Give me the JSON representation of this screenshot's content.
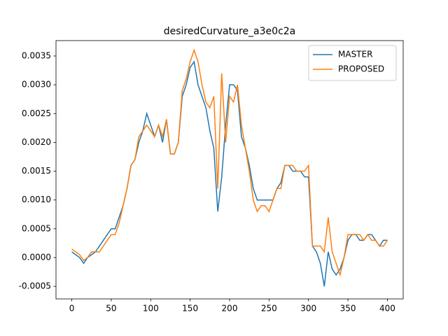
{
  "chart_data": {
    "type": "line",
    "title": "desiredCurvature_a3e0c2a",
    "x": [
      0,
      5,
      10,
      15,
      20,
      25,
      30,
      35,
      40,
      45,
      50,
      55,
      60,
      65,
      70,
      75,
      80,
      85,
      90,
      95,
      100,
      105,
      110,
      115,
      120,
      125,
      130,
      135,
      140,
      145,
      150,
      155,
      160,
      165,
      170,
      175,
      180,
      185,
      190,
      195,
      200,
      205,
      210,
      215,
      220,
      225,
      230,
      235,
      240,
      245,
      250,
      255,
      260,
      265,
      270,
      275,
      280,
      285,
      290,
      295,
      300,
      305,
      310,
      315,
      320,
      325,
      330,
      335,
      340,
      345,
      350,
      355,
      360,
      365,
      370,
      375,
      380,
      385,
      390,
      395,
      400
    ],
    "series": [
      {
        "name": "MASTER",
        "color": "#1f77b4",
        "values": [
          0.0001,
          5e-05,
          0.0,
          -0.0001,
          0.0,
          5e-05,
          0.0001,
          0.0002,
          0.0003,
          0.0004,
          0.0005,
          0.0005,
          0.0007,
          0.0009,
          0.0012,
          0.0016,
          0.0017,
          0.002,
          0.0022,
          0.0025,
          0.0023,
          0.0021,
          0.0023,
          0.002,
          0.0024,
          0.0018,
          0.0018,
          0.002,
          0.0028,
          0.003,
          0.0033,
          0.0034,
          0.003,
          0.0028,
          0.0026,
          0.0022,
          0.0019,
          0.0008,
          0.0014,
          0.0023,
          0.003,
          0.003,
          0.0029,
          0.0021,
          0.0019,
          0.0016,
          0.0012,
          0.001,
          0.001,
          0.001,
          0.001,
          0.001,
          0.0012,
          0.0013,
          0.0016,
          0.0016,
          0.0015,
          0.0015,
          0.0015,
          0.0014,
          0.0014,
          0.0002,
          0.0001,
          -0.0001,
          -0.0005,
          0.0001,
          -0.0002,
          -0.0003,
          -0.0002,
          0.0,
          0.0003,
          0.0004,
          0.0004,
          0.0003,
          0.0003,
          0.0004,
          0.0004,
          0.0003,
          0.0002,
          0.0003,
          0.0003
        ]
      },
      {
        "name": "PROPOSED",
        "color": "#ff7f0e",
        "values": [
          0.00015,
          0.0001,
          5e-05,
          -5e-05,
          0.0,
          0.0001,
          0.0001,
          0.0001,
          0.0002,
          0.0003,
          0.0004,
          0.0004,
          0.0006,
          0.0009,
          0.0012,
          0.0016,
          0.0017,
          0.0021,
          0.0022,
          0.0023,
          0.0022,
          0.0021,
          0.0023,
          0.0021,
          0.0024,
          0.0018,
          0.0018,
          0.002,
          0.0029,
          0.0031,
          0.0034,
          0.0036,
          0.0034,
          0.003,
          0.0027,
          0.0026,
          0.0028,
          0.0012,
          0.0032,
          0.002,
          0.0028,
          0.0027,
          0.003,
          0.0023,
          0.0019,
          0.0015,
          0.001,
          0.0008,
          0.0009,
          0.0009,
          0.0008,
          0.001,
          0.0012,
          0.0012,
          0.0016,
          0.0016,
          0.0016,
          0.0015,
          0.0015,
          0.0015,
          0.0016,
          0.0002,
          0.0002,
          0.0002,
          0.0001,
          0.0007,
          0.0001,
          -0.0001,
          -0.0003,
          0.0,
          0.0004,
          0.0004,
          0.0004,
          0.0004,
          0.0003,
          0.0004,
          0.0003,
          0.0003,
          0.0002,
          0.0002,
          0.0003
        ]
      }
    ],
    "xlim": [
      -20,
      420
    ],
    "xticks": [
      0,
      50,
      100,
      150,
      200,
      250,
      300,
      350,
      400
    ],
    "ylim": [
      -0.000717,
      0.003767
    ],
    "yticks": [
      {
        "value": -0.0005,
        "label": "-0.0005"
      },
      {
        "value": 0,
        "label": "0.0000"
      },
      {
        "value": 0.0005,
        "label": "0.0005"
      },
      {
        "value": 0.001,
        "label": "0.0010"
      },
      {
        "value": 0.0015,
        "label": "0.0015"
      },
      {
        "value": 0.002,
        "label": "0.0020"
      },
      {
        "value": 0.0025,
        "label": "0.0025"
      },
      {
        "value": 0.003,
        "label": "0.0030"
      },
      {
        "value": 0.0035,
        "label": "0.0035"
      }
    ],
    "legend": "upper right"
  }
}
